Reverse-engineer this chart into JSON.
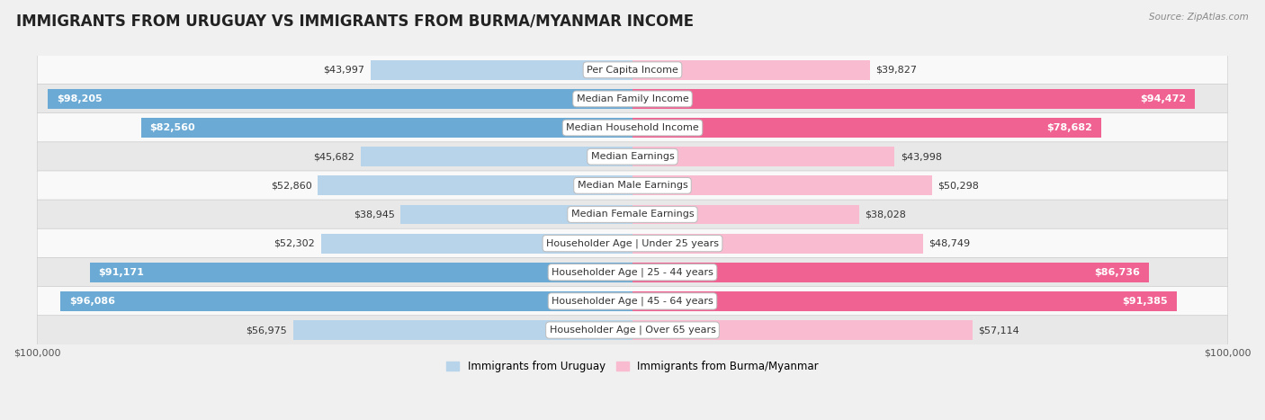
{
  "title": "IMMIGRANTS FROM URUGUAY VS IMMIGRANTS FROM BURMA/MYANMAR INCOME",
  "source": "Source: ZipAtlas.com",
  "categories": [
    "Per Capita Income",
    "Median Family Income",
    "Median Household Income",
    "Median Earnings",
    "Median Male Earnings",
    "Median Female Earnings",
    "Householder Age | Under 25 years",
    "Householder Age | 25 - 44 years",
    "Householder Age | 45 - 64 years",
    "Householder Age | Over 65 years"
  ],
  "uruguay_values": [
    43997,
    98205,
    82560,
    45682,
    52860,
    38945,
    52302,
    91171,
    96086,
    56975
  ],
  "burma_values": [
    39827,
    94472,
    78682,
    43998,
    50298,
    38028,
    48749,
    86736,
    91385,
    57114
  ],
  "uruguay_labels": [
    "$43,997",
    "$98,205",
    "$82,560",
    "$45,682",
    "$52,860",
    "$38,945",
    "$52,302",
    "$91,171",
    "$96,086",
    "$56,975"
  ],
  "burma_labels": [
    "$39,827",
    "$94,472",
    "$78,682",
    "$43,998",
    "$50,298",
    "$38,028",
    "$48,749",
    "$86,736",
    "$91,385",
    "$57,114"
  ],
  "max_value": 100000,
  "uruguay_color_light": "#b8d4ea",
  "uruguay_color_dark": "#6aaad4",
  "burma_color_light": "#f8bbd0",
  "burma_color_dark": "#f06292",
  "uruguay_thresh": 75000,
  "burma_thresh": 75000,
  "bar_height": 0.68,
  "bg_color": "#f0f0f0",
  "row_bg_odd": "#f9f9f9",
  "row_bg_even": "#e8e8e8",
  "title_fontsize": 12,
  "label_fontsize": 8,
  "category_fontsize": 8,
  "tick_fontsize": 8,
  "legend_uruguay": "Immigrants from Uruguay",
  "legend_burma": "Immigrants from Burma/Myanmar"
}
